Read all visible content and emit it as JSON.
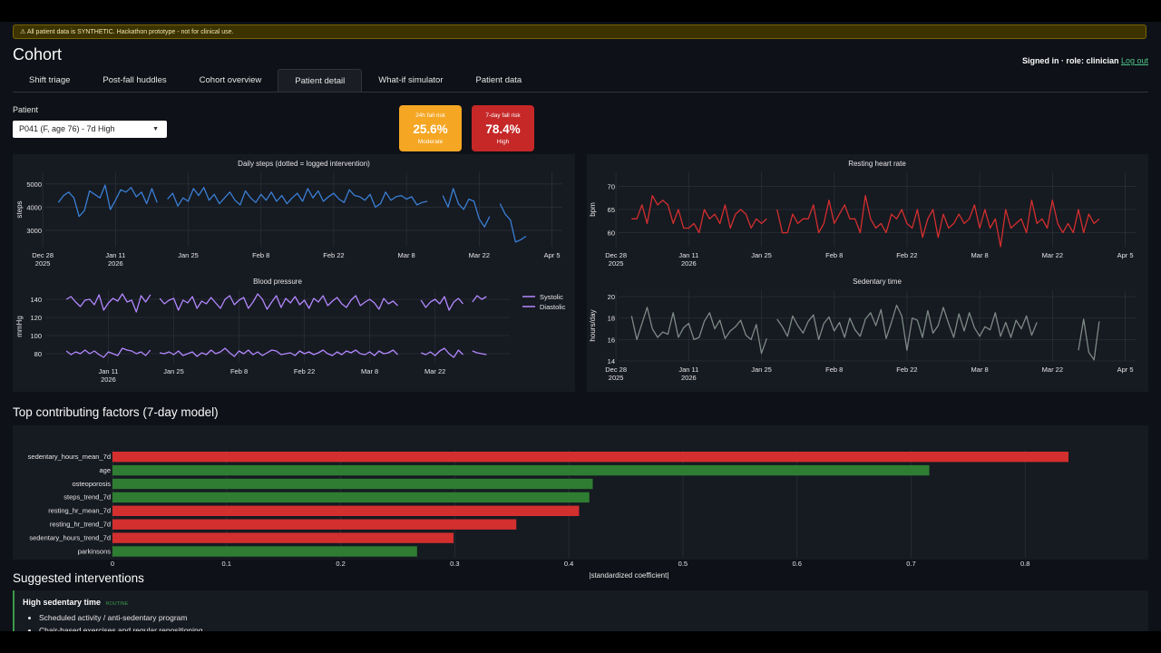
{
  "banner": "⚠ All patient data is SYNTHETIC. Hackathon prototype - not for clinical use.",
  "page": {
    "title": "Cohort"
  },
  "auth": {
    "signed_in": "Signed in · role: clinician",
    "logout": "Log out"
  },
  "tabs": [
    {
      "label": "Shift triage",
      "active": false
    },
    {
      "label": "Post-fall huddles",
      "active": false
    },
    {
      "label": "Cohort overview",
      "active": false
    },
    {
      "label": "Patient detail",
      "active": true
    },
    {
      "label": "What-if simulator",
      "active": false
    },
    {
      "label": "Patient data",
      "active": false
    }
  ],
  "patient": {
    "label": "Patient",
    "selected": "P041 (F, age 76) - 7d High"
  },
  "risk": {
    "r24": {
      "label": "24h fall risk",
      "value": "25.6%",
      "category": "Moderate",
      "color": "#f5a623"
    },
    "r7": {
      "label": "7-day fall risk",
      "value": "78.4%",
      "category": "High",
      "color": "#c62828"
    }
  },
  "x_ticks": [
    {
      "l1": "Dec 28",
      "l2": "2025"
    },
    {
      "l1": "Jan 11",
      "l2": "2026"
    },
    {
      "l1": "Jan 25",
      "l2": ""
    },
    {
      "l1": "Feb 8",
      "l2": ""
    },
    {
      "l1": "Feb 22",
      "l2": ""
    },
    {
      "l1": "Mar 8",
      "l2": ""
    },
    {
      "l1": "Mar 22",
      "l2": ""
    },
    {
      "l1": "Apr 5",
      "l2": ""
    }
  ],
  "chart_data": [
    {
      "type": "line",
      "title": "Daily steps (dotted = logged intervention)",
      "ylabel": "steps",
      "x_start": "2025-12-31",
      "ylim": [
        2300,
        5500
      ],
      "yticks": [
        3000,
        4000,
        5000
      ],
      "color": "#3a7fd5",
      "series": [
        {
          "values": [
            4200,
            4500,
            4650,
            4400,
            3600,
            3850,
            4700,
            4550,
            4400,
            4950,
            3900,
            4300,
            4750,
            4650,
            4850,
            4450,
            4650,
            4150,
            4800,
            4200,
            null,
            4350,
            4600,
            4050,
            4400,
            4250,
            4800,
            4500,
            4850,
            4300,
            4550,
            4150,
            4400,
            4650,
            4300,
            4100,
            4700,
            4400,
            4200,
            4550,
            4300,
            4650,
            4250,
            4500,
            4150,
            4400,
            4600,
            4250,
            4800,
            4400,
            4700,
            4250,
            4450,
            4600,
            4350,
            4200,
            4750,
            4500,
            4450,
            4300,
            4550,
            4000,
            4150,
            4650,
            4300,
            4450,
            4500,
            4350,
            4450,
            4100,
            4200,
            4250,
            null,
            null,
            4500,
            4000,
            4800,
            4150,
            3900,
            4350,
            4250,
            3500,
            3150,
            3600,
            null,
            4150,
            3700,
            3450,
            2500,
            2600,
            2750
          ]
        }
      ]
    },
    {
      "type": "line",
      "title": "Resting heart rate",
      "ylabel": "bpm",
      "x_start": "2025-12-31",
      "ylim": [
        57,
        73
      ],
      "yticks": [
        60,
        65,
        70
      ],
      "color": "#d32f2f",
      "series": [
        {
          "values": [
            63,
            63,
            66,
            62,
            68,
            66,
            67,
            66,
            62,
            65,
            61,
            61,
            62,
            60,
            65,
            63,
            64,
            62,
            66,
            61,
            64,
            65,
            64,
            61,
            63,
            62,
            63,
            null,
            65,
            60,
            60,
            64,
            62,
            63,
            63,
            66,
            60,
            62,
            67,
            62,
            64,
            66,
            63,
            63,
            60,
            68,
            63,
            61,
            62,
            60,
            64,
            63,
            65,
            62,
            61,
            65,
            59,
            63,
            65,
            59,
            64,
            61,
            62,
            64,
            62,
            63,
            66,
            61,
            65,
            61,
            63,
            57,
            65,
            61,
            62,
            63,
            60,
            67,
            62,
            63,
            61,
            67,
            62,
            60,
            62,
            60,
            65,
            60,
            64,
            62,
            63
          ]
        }
      ]
    },
    {
      "type": "line",
      "title": "Blood pressure",
      "ylabel": "mmHg",
      "x_start": "2026-01-02",
      "ylim": [
        70,
        150
      ],
      "yticks": [
        80,
        100,
        120,
        140
      ],
      "color": "#b388ff",
      "series": [
        {
          "name": "Systolic",
          "values": [
            140,
            143,
            137,
            132,
            139,
            140,
            134,
            145,
            128,
            136,
            141,
            138,
            146,
            137,
            139,
            126,
            144,
            137,
            145,
            null,
            141,
            135,
            139,
            141,
            128,
            139,
            136,
            143,
            130,
            138,
            135,
            142,
            136,
            130,
            140,
            144,
            134,
            139,
            142,
            130,
            137,
            146,
            140,
            129,
            137,
            144,
            131,
            141,
            136,
            143,
            134,
            139,
            130,
            141,
            137,
            144,
            133,
            138,
            142,
            135,
            131,
            139,
            144,
            133,
            137,
            140,
            136,
            129,
            141,
            135,
            138,
            133,
            null,
            null,
            null,
            null,
            139,
            131,
            137,
            140,
            135,
            143,
            128,
            137,
            141,
            135,
            null,
            137,
            144,
            140,
            143
          ]
        },
        {
          "name": "Diastolic",
          "values": [
            83,
            79,
            82,
            80,
            84,
            80,
            83,
            79,
            76,
            82,
            80,
            78,
            86,
            84,
            83,
            80,
            82,
            78,
            84,
            null,
            81,
            80,
            82,
            79,
            83,
            78,
            80,
            82,
            77,
            81,
            79,
            84,
            80,
            82,
            86,
            81,
            77,
            83,
            80,
            84,
            79,
            82,
            78,
            81,
            84,
            83,
            79,
            80,
            81,
            78,
            83,
            80,
            82,
            79,
            81,
            84,
            80,
            78,
            82,
            79,
            83,
            81,
            84,
            80,
            79,
            82,
            78,
            83,
            80,
            81,
            84,
            79,
            null,
            null,
            null,
            null,
            81,
            79,
            82,
            78,
            83,
            86,
            80,
            76,
            84,
            79,
            null,
            83,
            81,
            80,
            79
          ]
        }
      ]
    },
    {
      "type": "line",
      "title": "Sedentary time",
      "ylabel": "hours/day",
      "x_start": "2025-12-31",
      "ylim": [
        14,
        20.6
      ],
      "yticks": [
        14,
        16,
        18,
        20
      ],
      "color": "#7d8a86",
      "series": [
        {
          "values": [
            18.2,
            16.0,
            17.5,
            19.0,
            17.0,
            16.2,
            16.7,
            16.5,
            18.5,
            16.2,
            17.1,
            17.5,
            16.0,
            16.2,
            17.7,
            18.5,
            17.0,
            17.8,
            16.1,
            16.8,
            17.2,
            17.8,
            16.4,
            16.0,
            17.4,
            14.7,
            16.1,
            null,
            17.9,
            17.2,
            16.3,
            18.2,
            17.3,
            16.6,
            17.7,
            18.3,
            16.0,
            17.5,
            18.1,
            16.8,
            17.6,
            16.2,
            18.0,
            16.9,
            16.3,
            17.9,
            18.5,
            17.3,
            18.8,
            16.1,
            17.6,
            19.2,
            18.2,
            15.0,
            18.0,
            17.8,
            16.2,
            18.7,
            16.6,
            17.3,
            19.0,
            17.5,
            16.2,
            18.4,
            16.8,
            18.5,
            17.1,
            16.3,
            17.2,
            16.9,
            18.5,
            16.3,
            17.6,
            16.2,
            17.8,
            17.0,
            18.2,
            16.4,
            17.6,
            null,
            null,
            18.0,
            null,
            null,
            null,
            null,
            15.0,
            17.9,
            14.8,
            14.1,
            17.7
          ]
        }
      ]
    },
    {
      "type": "bar",
      "orientation": "horizontal",
      "title": "Top contributing factors (7-day model)",
      "xlabel": "|standardized coefficient|",
      "xlim": [
        0,
        0.9
      ],
      "xticks": [
        0,
        0.1,
        0.2,
        0.3,
        0.4,
        0.5,
        0.6,
        0.7,
        0.8
      ],
      "categories": [
        "sedentary_hours_mean_7d",
        "age",
        "osteoporosis",
        "steps_trend_7d",
        "resting_hr_mean_7d",
        "resting_hr_trend_7d",
        "sedentary_hours_trend_7d",
        "parkinsons"
      ],
      "values": [
        0.838,
        0.716,
        0.421,
        0.418,
        0.409,
        0.354,
        0.299,
        0.267
      ],
      "colors": [
        "#d32f2f",
        "#2e7d32",
        "#2e7d32",
        "#2e7d32",
        "#d32f2f",
        "#d32f2f",
        "#d32f2f",
        "#2e7d32"
      ]
    }
  ],
  "interventions": {
    "title": "Suggested interventions",
    "item": {
      "heading": "High sedentary time",
      "tag": "ROUTINE",
      "bullets": [
        "Scheduled activity / anti-sedentary program",
        "Chair-based exercises and regular repositioning"
      ]
    }
  }
}
